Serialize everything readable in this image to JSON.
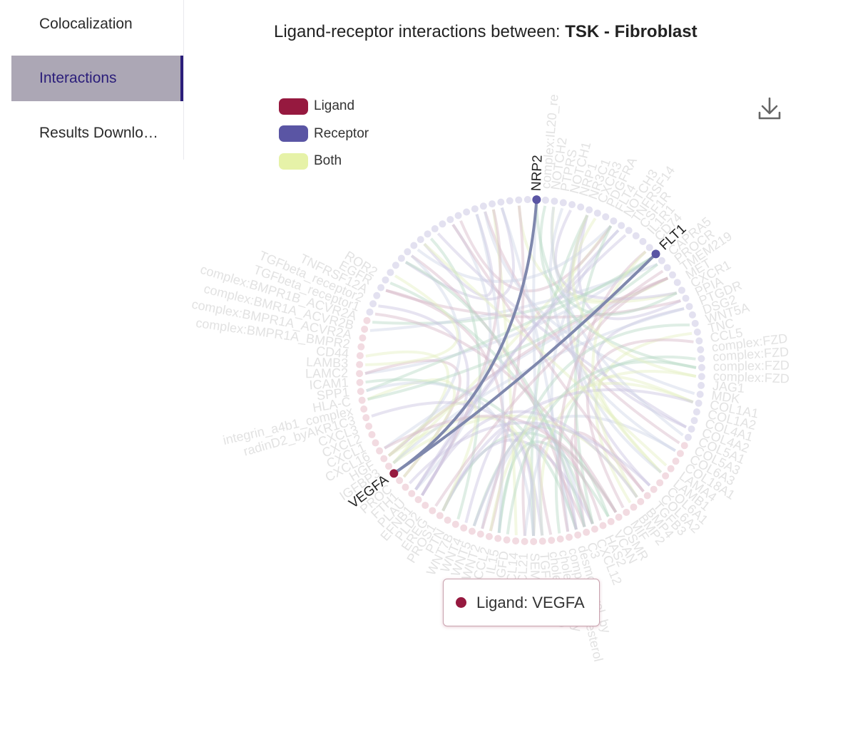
{
  "sidebar": {
    "items": [
      {
        "label": "Colocalization",
        "active": false
      },
      {
        "label": "Interactions",
        "active": true
      },
      {
        "label": "Results Downlo…",
        "active": false
      }
    ]
  },
  "header": {
    "title_prefix": "Ligand-receptor interactions between: ",
    "title_pair": "TSK - Fibroblast"
  },
  "legend": [
    {
      "label": "Ligand",
      "color": "#96193f"
    },
    {
      "label": "Receptor",
      "color": "#5a55a4"
    },
    {
      "label": "Both",
      "color": "#e6f2a8"
    }
  ],
  "toolbar": {
    "download_icon": "download-icon"
  },
  "chord": {
    "colors": {
      "ligand": "#96193f",
      "receptor": "#5a55a4",
      "both": "#e6f2a8",
      "highlight": "#7f88ad",
      "faint_ligand": "#f2dbe1",
      "faint_receptor": "#e3e1f0"
    },
    "node_count": 120,
    "highlighted_nodes": [
      {
        "label": "NRP2",
        "role": "receptor",
        "index": 0
      },
      {
        "label": "FLT1",
        "role": "receptor",
        "index": 15
      },
      {
        "label": "VEGFA",
        "role": "ligand",
        "index": 77
      }
    ],
    "highlighted_links": [
      {
        "source": "VEGFA",
        "target": "NRP2"
      },
      {
        "source": "VEGFA",
        "target": "FLT1"
      }
    ],
    "faded_labels": [
      "complex:IL20_re",
      "NOTCH2",
      "PTPRS",
      "NOTCH1",
      "NRP1",
      "NR3C1",
      "CXCR3",
      "PDGFRA",
      "FLT4",
      "NOTCH3",
      "TNFRSF14",
      "CSF1R",
      "IL1R1",
      "CD74",
      "CAPRA5",
      "PROCR",
      "TMEM219",
      "MET",
      "CXCR1",
      "PPIA",
      "PTGDR",
      "DSG2",
      "WNT5A",
      "TNC",
      "CCL5",
      "complex:FZD",
      "complex:FZD",
      "complex:FZD",
      "complex:FZD",
      "JAG1",
      "MDK",
      "COL1A1",
      "COL1A2",
      "COL4A1",
      "COL4A2",
      "COL5A1",
      "COL5A3",
      "COL6A3",
      "COL18A1",
      "LAMA4",
      "LAMB1",
      "COL6A1",
      "COL6A2",
      "TGFB3",
      "BMP4",
      "BMP2",
      "MIF",
      "OSMR",
      "VCAN",
      "HAS2",
      "CXCL12",
      "C3",
      "desmosterol_by",
      "complex:Cholesterol",
      "cholesterol_by",
      "cholesterol_b",
      "TGFB1",
      "SEMA3C",
      "CCL21",
      "CXCL14",
      "PDGFD",
      "IL15",
      "CCL2",
      "WNT2",
      "WNT5",
      "WNT4",
      "WNT7B",
      "PTN",
      "PROS1",
      "EREG",
      "PLD2",
      "EFNB1",
      "PLAU",
      "FTH1",
      "PROC",
      "IGFBP3",
      "HGF",
      "CXCL16",
      "CXCL1",
      "CXCL2",
      "CXCL3",
      "radinD2_byAKR1C3",
      "integrin_a4b1_complex",
      "HLA-C",
      "SPP1",
      "ICAM1",
      "LAMC2",
      "LAMB3",
      "CD44",
      "complex:BMPR1A_BMPR2",
      "complex:BMPR1A_ACVR2A",
      "complex:BMR1A_ACVR2B",
      "complex:BMPR1B_ACVR2A",
      "TGFbeta_receptor1",
      "TGFbeta_receptor2",
      "TNFRSF12A",
      "EGFR",
      "ROR2"
    ]
  },
  "tooltip": {
    "text": "Ligand: VEGFA",
    "dot_color": "#96193f"
  }
}
